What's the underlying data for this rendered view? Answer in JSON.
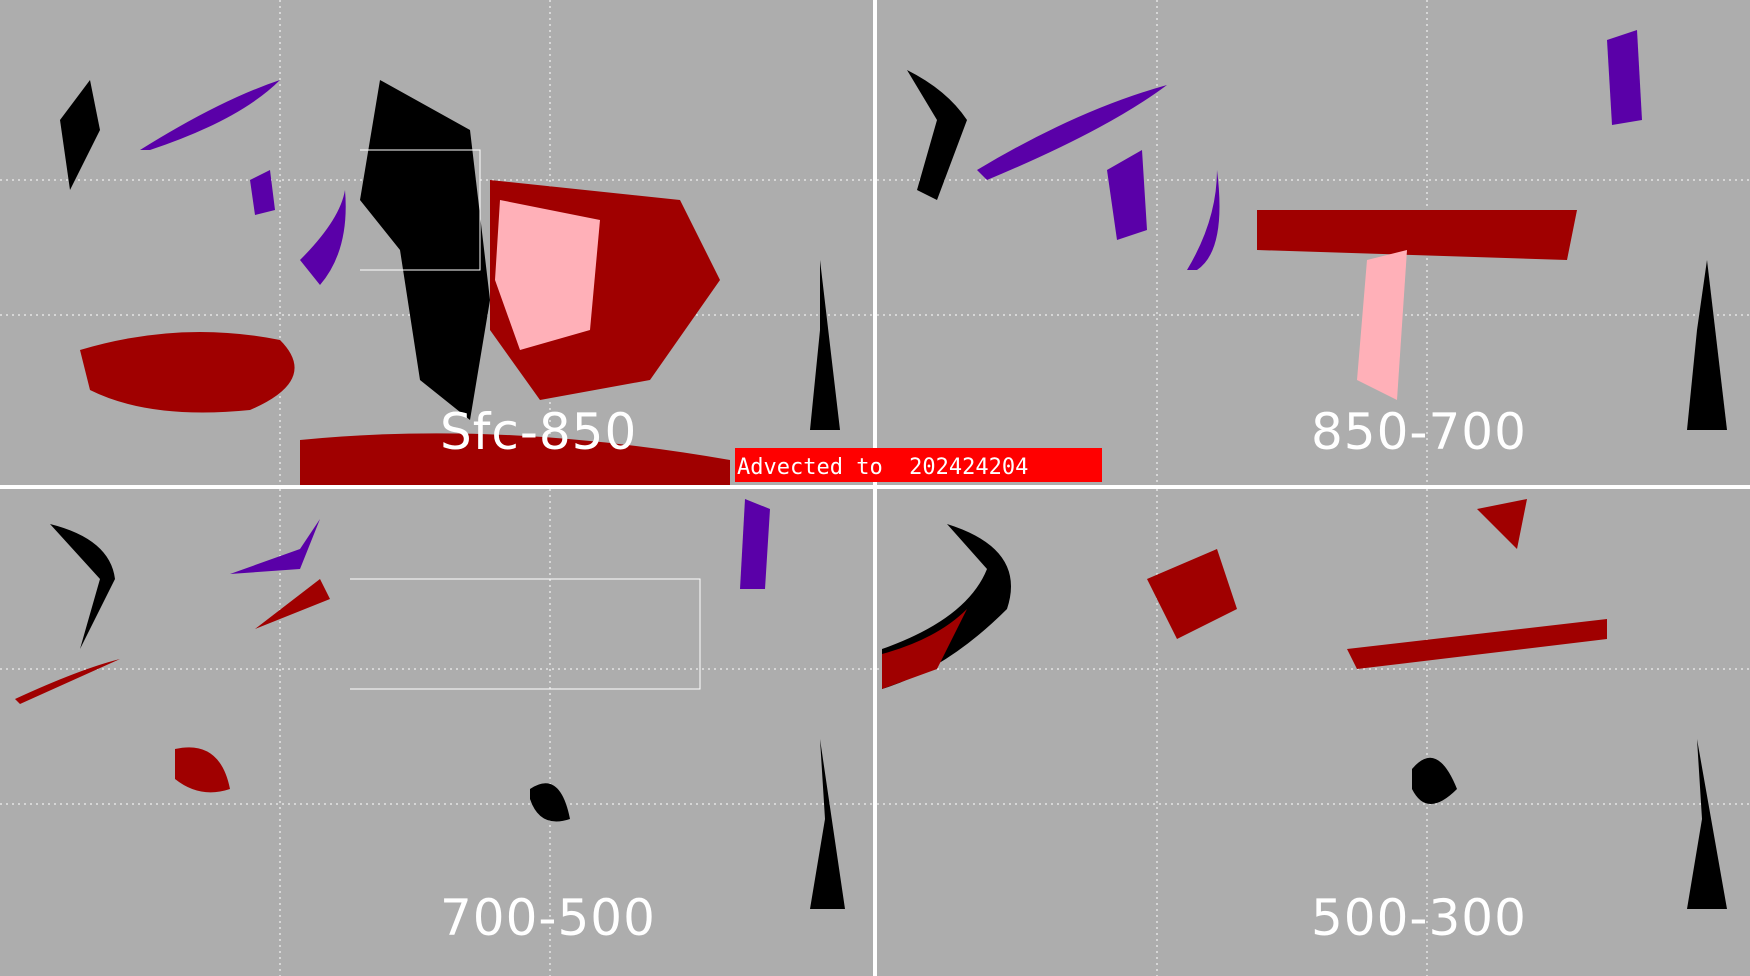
{
  "panels": [
    {
      "label": "Sfc-850"
    },
    {
      "label": "850-700"
    },
    {
      "label": "700-500"
    },
    {
      "label": "500-300"
    }
  ],
  "banner": {
    "text": "Advected to  202424204",
    "color": "#ff0000"
  },
  "colors": {
    "background": "#adadad",
    "dark_red": "#a00000",
    "pink": "#ffb0b8",
    "purple": "#5a00a8",
    "black": "#000000",
    "coastline": "#ffffff"
  }
}
